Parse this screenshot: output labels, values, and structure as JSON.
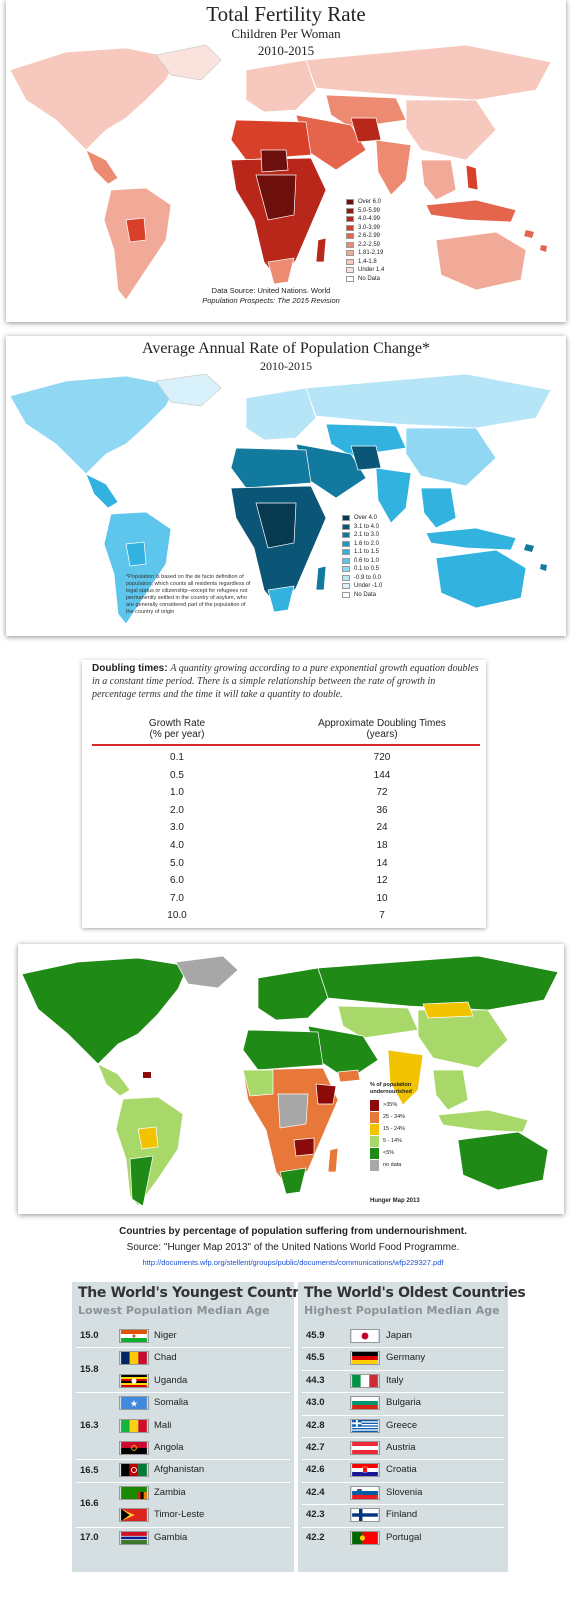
{
  "fertility": {
    "title": "Total Fertility Rate",
    "subtitle": "Children Per Woman",
    "years": "2010-2015",
    "source_line1": "Data Source: United Nations. World",
    "source_line2": "Population Prospects: The 2015 Revision",
    "legend": [
      {
        "label": "Over 6.0",
        "color": "#6d0f0c"
      },
      {
        "label": "5.0-5.99",
        "color": "#8e1a10"
      },
      {
        "label": "4.0-4.99",
        "color": "#b9261a"
      },
      {
        "label": "3.0-3.99",
        "color": "#d8402a"
      },
      {
        "label": "2.6-2.99",
        "color": "#e4654c"
      },
      {
        "label": "2.2-2.59",
        "color": "#ec8a72"
      },
      {
        "label": "1.81-2.19",
        "color": "#f2aa98"
      },
      {
        "label": "1.4-1.8",
        "color": "#f7c8bd"
      },
      {
        "label": "Under 1.4",
        "color": "#fbe3dd"
      },
      {
        "label": "No Data",
        "color": "#ffffff"
      }
    ]
  },
  "popchange": {
    "title": "Average Annual Rate of Population Change*",
    "years": "2010-2015",
    "footnote": "*Population is based on the de facto definition of population, which counts all residents regardless of legal status or citizenship--except for refugees not permanently settled in the country of asylum, who are generally considered part of the population of the country of origin",
    "legend": [
      {
        "label": "Over 4.0",
        "color": "#07394f"
      },
      {
        "label": "3.1 to 4.0",
        "color": "#0b5676"
      },
      {
        "label": "2.1 to 3.0",
        "color": "#127a9e"
      },
      {
        "label": "1.6 to 2.0",
        "color": "#1a97c2"
      },
      {
        "label": "1.1 to 1.5",
        "color": "#31b2df"
      },
      {
        "label": "0.6 to 1.0",
        "color": "#5ec6ec"
      },
      {
        "label": "0.1 to 0.5",
        "color": "#8fd7f3"
      },
      {
        "label": "-0.9 to 0.0",
        "color": "#b7e5f8"
      },
      {
        "label": "Under -1.0",
        "color": "#d9f1fb"
      },
      {
        "label": "No Data",
        "color": "#ffffff"
      }
    ]
  },
  "doubling": {
    "label": "Doubling times:",
    "text": "A quantity growing according to a pure exponential growth equation doubles in a constant time period. There is a simple relationship between the rate of growth in percentage terms and the time it will take a quantity to double.",
    "col1_line1": "Growth Rate",
    "col1_line2": "(% per year)",
    "col2_line1": "Approximate Doubling Times",
    "col2_line2": "(years)",
    "rows": [
      {
        "rate": "0.1",
        "years": "720"
      },
      {
        "rate": "0.5",
        "years": "144"
      },
      {
        "rate": "1.0",
        "years": "72"
      },
      {
        "rate": "2.0",
        "years": "36"
      },
      {
        "rate": "3.0",
        "years": "24"
      },
      {
        "rate": "4.0",
        "years": "18"
      },
      {
        "rate": "5.0",
        "years": "14"
      },
      {
        "rate": "6.0",
        "years": "12"
      },
      {
        "rate": "7.0",
        "years": "10"
      },
      {
        "rate": "10.0",
        "years": "7"
      }
    ]
  },
  "hunger": {
    "legend_title1": "% of population",
    "legend_title2": "undernourished",
    "legend": [
      {
        "label": ">35%",
        "color": "#8b0a0a"
      },
      {
        "label": "25 - 34%",
        "color": "#e8773a"
      },
      {
        "label": "15 - 24%",
        "color": "#f2c300"
      },
      {
        "label": "5 - 14%",
        "color": "#a9d86a"
      },
      {
        "label": "<5%",
        "color": "#1f8a16"
      },
      {
        "label": "no data",
        "color": "#a7a7a7"
      }
    ],
    "map_label": "Hunger Map 2013",
    "caption1": "Countries by percentage of population suffering from undernourishment.",
    "caption2": "Source: \"Hunger Map 2013\" of the United Nations World Food Programme.",
    "caption_link": "http://documents.wfp.org/stellent/groups/public/documents/communications/wfp229327.pdf"
  },
  "youngest": {
    "title": "The World's Youngest Countries",
    "subtitle": "Lowest Population Median Age",
    "groups": [
      {
        "age": "15.0",
        "countries": [
          "Niger"
        ]
      },
      {
        "age": "15.8",
        "countries": [
          "Chad",
          "Uganda"
        ]
      },
      {
        "age": "16.3",
        "countries": [
          "Somalia",
          "Mali",
          "Angola"
        ]
      },
      {
        "age": "16.5",
        "countries": [
          "Afghanistan"
        ]
      },
      {
        "age": "16.6",
        "countries": [
          "Zambia",
          "Timor-Leste"
        ]
      },
      {
        "age": "17.0",
        "countries": [
          "Gambia"
        ]
      }
    ]
  },
  "oldest": {
    "title": "The World's Oldest Countries",
    "subtitle": "Highest Population Median Age",
    "rows": [
      {
        "age": "45.9",
        "country": "Japan"
      },
      {
        "age": "45.5",
        "country": "Germany"
      },
      {
        "age": "44.3",
        "country": "Italy"
      },
      {
        "age": "43.0",
        "country": "Bulgaria"
      },
      {
        "age": "42.8",
        "country": "Greece"
      },
      {
        "age": "42.7",
        "country": "Austria"
      },
      {
        "age": "42.6",
        "country": "Croatia"
      },
      {
        "age": "42.4",
        "country": "Slovenia"
      },
      {
        "age": "42.3",
        "country": "Finland"
      },
      {
        "age": "42.2",
        "country": "Portugal"
      }
    ]
  }
}
